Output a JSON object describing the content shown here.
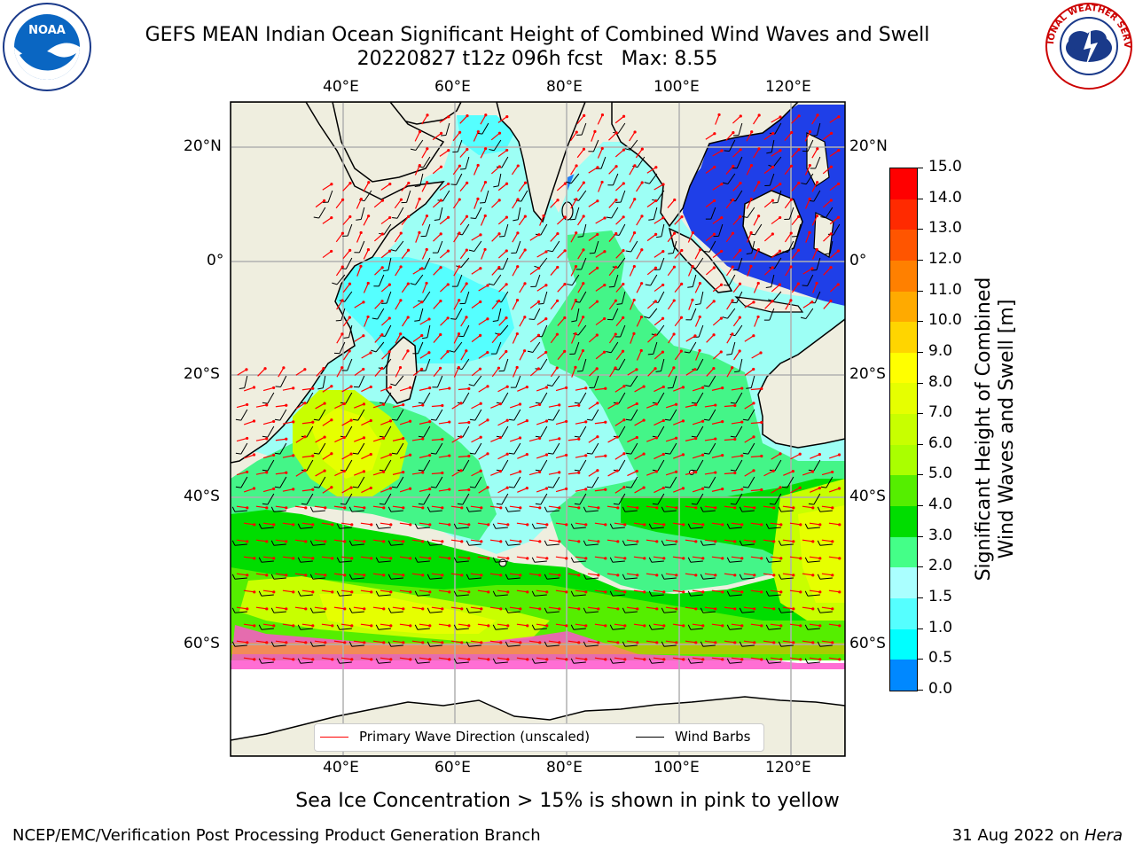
{
  "header": {
    "title_line1": "GEFS MEAN Indian Ocean Significant Height of Combined Wind Waves and Swell",
    "title_line2": "20220827 t12z 096h fcst   Max: 8.55",
    "logo_left": "NOAA",
    "logo_right": "NATIONAL WEATHER SERVICE"
  },
  "map": {
    "lon_labels": [
      "40°E",
      "60°E",
      "80°E",
      "100°E",
      "120°E"
    ],
    "lat_labels": [
      "20°N",
      "0°",
      "20°S",
      "40°S",
      "60°S"
    ],
    "legend": {
      "wave_label": "Primary Wave Direction (unscaled)",
      "wind_label": "Wind Barbs",
      "wave_color": "#ff0000",
      "wind_color": "#000000"
    }
  },
  "colorbar": {
    "title_line1": "Significant Height of Combined",
    "title_line2": "Wind Waves and Swell [m]",
    "ticks": [
      "15.0",
      "14.0",
      "13.0",
      "12.0",
      "11.0",
      "10.0",
      "9.0",
      "8.0",
      "7.0",
      "6.0",
      "5.0",
      "4.0",
      "3.0",
      "2.0",
      "1.5",
      "1.0",
      "0.5",
      "0.0"
    ],
    "colors": [
      "#ff0000",
      "#ff2a00",
      "#ff5500",
      "#ff8000",
      "#ffaa00",
      "#ffd500",
      "#ffff00",
      "#e6ff00",
      "#c8ff00",
      "#aaff00",
      "#55ee00",
      "#00dd00",
      "#44ff88",
      "#aaffff",
      "#55ffff",
      "#00ffff",
      "#0088ff",
      "#0000ff"
    ]
  },
  "footer": {
    "sea_ice_note": "Sea Ice Concentration > 15% is shown in pink to yellow",
    "branch": "NCEP/EMC/Verification Post Processing Product Generation Branch",
    "date_text": "31 Aug 2022 on ",
    "host": "Hera"
  }
}
